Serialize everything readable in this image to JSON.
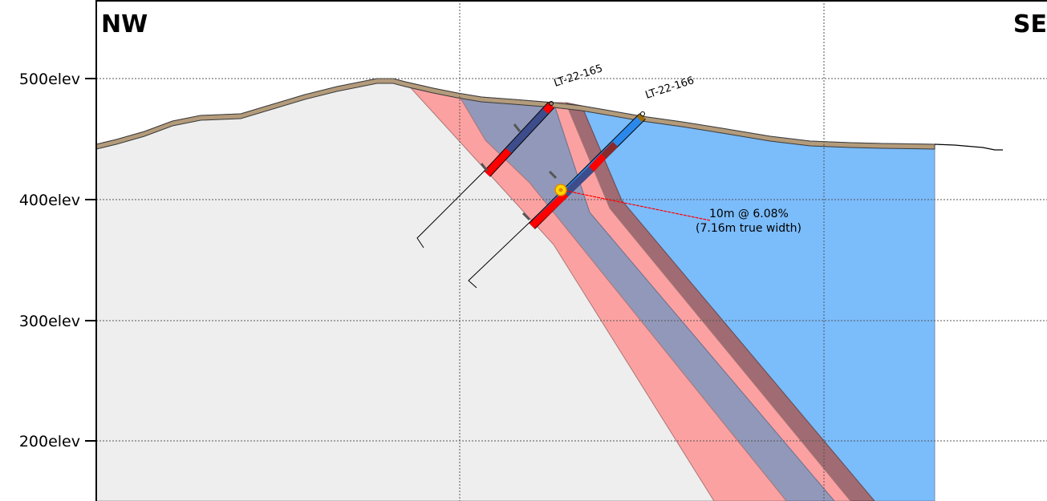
{
  "section": {
    "left_label": "NW",
    "right_label": "SE"
  },
  "elevations": [
    {
      "value": 500,
      "label": "500elev"
    },
    {
      "value": 400,
      "label": "400elev"
    },
    {
      "value": 300,
      "label": "300elev"
    },
    {
      "value": 200,
      "label": "200elev"
    }
  ],
  "drillholes": [
    {
      "id": "LT-22-165"
    },
    {
      "id": "LT-22-166"
    }
  ],
  "intercept": {
    "line1": "10m @ 6.08%",
    "line2": "(7.16m true width)"
  },
  "colors": {
    "host_rock": "#eeeeee",
    "pink_unit": "#fca1a1",
    "slate_unit": "#9198b9",
    "brown_unit": "#a06b72",
    "blue_unit": "#7bbcfb",
    "overburden": "#b39b7b",
    "mineralized_interval": "#ff0000",
    "highlight_marker": "#ffd800",
    "grid": "#555555"
  }
}
